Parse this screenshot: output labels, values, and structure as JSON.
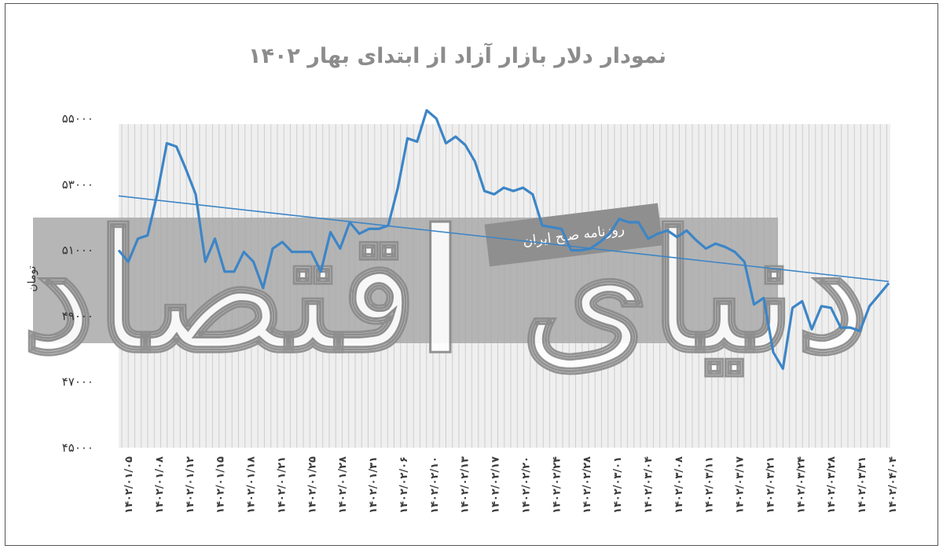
{
  "chart_data": {
    "type": "line",
    "title": "نمودار دلار بازار آزاد از ابتدای بهار ۱۴۰۲",
    "ylabel": "تومان",
    "xlabel": "",
    "ylim": [
      45000,
      55000
    ],
    "yticks": [
      "۵۵۰۰۰",
      "۵۳۰۰۰",
      "۵۱۰۰۰",
      "۴۹۰۰۰",
      "۴۷۰۰۰",
      "۴۵۰۰۰"
    ],
    "ytick_values": [
      55000,
      53000,
      51000,
      49000,
      47000,
      45000
    ],
    "x_labels": [
      "۱۴۰۲/۰۱/۰۵",
      "۱۴۰۲/۰۱/۰۸",
      "۱۴۰۲/۰۱/۱۲",
      "۱۴۰۲/۰۱/۱۵",
      "۱۴۰۲/۰۱/۱۸",
      "۱۴۰۲/۰۱/۲۱",
      "۱۴۰۲/۰۱/۲۵",
      "۱۴۰۲/۰۱/۲۸",
      "۱۴۰۲/۰۱/۳۱",
      "۱۴۰۲/۰۲/۰۶",
      "۱۴۰۲/۰۲/۱۰",
      "۱۴۰۲/۰۲/۱۳",
      "۱۴۰۲/۰۲/۱۷",
      "۱۴۰۲/۰۲/۲۰",
      "۱۴۰۲/۰۲/۲۴",
      "۱۴۰۲/۰۲/۲۸",
      "۱۴۰۲/۰۳/۰۱",
      "۱۴۰۲/۰۳/۰۴",
      "۱۴۰۲/۰۳/۰۸",
      "۱۴۰۲/۰۳/۱۱",
      "۱۴۰۲/۰۳/۱۷",
      "۱۴۰۲/۰۳/۲۱",
      "۱۴۰۲/۰۳/۲۴",
      "۱۴۰۲/۰۳/۲۸",
      "۱۴۰۲/۰۳/۳۱",
      "۱۴۰۲/۰۴/۰۴"
    ],
    "series": [
      {
        "name": "",
        "color": "#3d85c6",
        "values": [
          51000,
          50650,
          51350,
          51450,
          52700,
          54250,
          54150,
          53450,
          52700,
          50650,
          51350,
          50350,
          50350,
          50950,
          50650,
          49850,
          51050,
          51250,
          50950,
          50950,
          50950,
          50350,
          51550,
          51050,
          51850,
          51500,
          51650,
          51650,
          51750,
          52900,
          54400,
          54300,
          55250,
          55000,
          54250,
          54450,
          54200,
          53700,
          52800,
          52700,
          52900,
          52800,
          52900,
          52700,
          51750,
          51700,
          51650,
          51000,
          51000,
          51050,
          51250,
          51500,
          51950,
          51850,
          51850,
          51350,
          51500,
          51600,
          51400,
          51600,
          51300,
          51050,
          51200,
          51100,
          50950,
          50650,
          49350,
          49550,
          47900,
          47400,
          49250,
          49450,
          48600,
          49300,
          49250,
          48650,
          48650,
          48550,
          49300,
          49650,
          50000
        ]
      },
      {
        "name": "",
        "type": "trendline",
        "color": "#3d85c6",
        "start": 52650,
        "end": 50050
      }
    ],
    "grid": true,
    "legend": "none"
  },
  "watermark": {
    "logo_text": "دنیای اقتصاد",
    "subtitle": "روزنامه صبح ایران"
  }
}
